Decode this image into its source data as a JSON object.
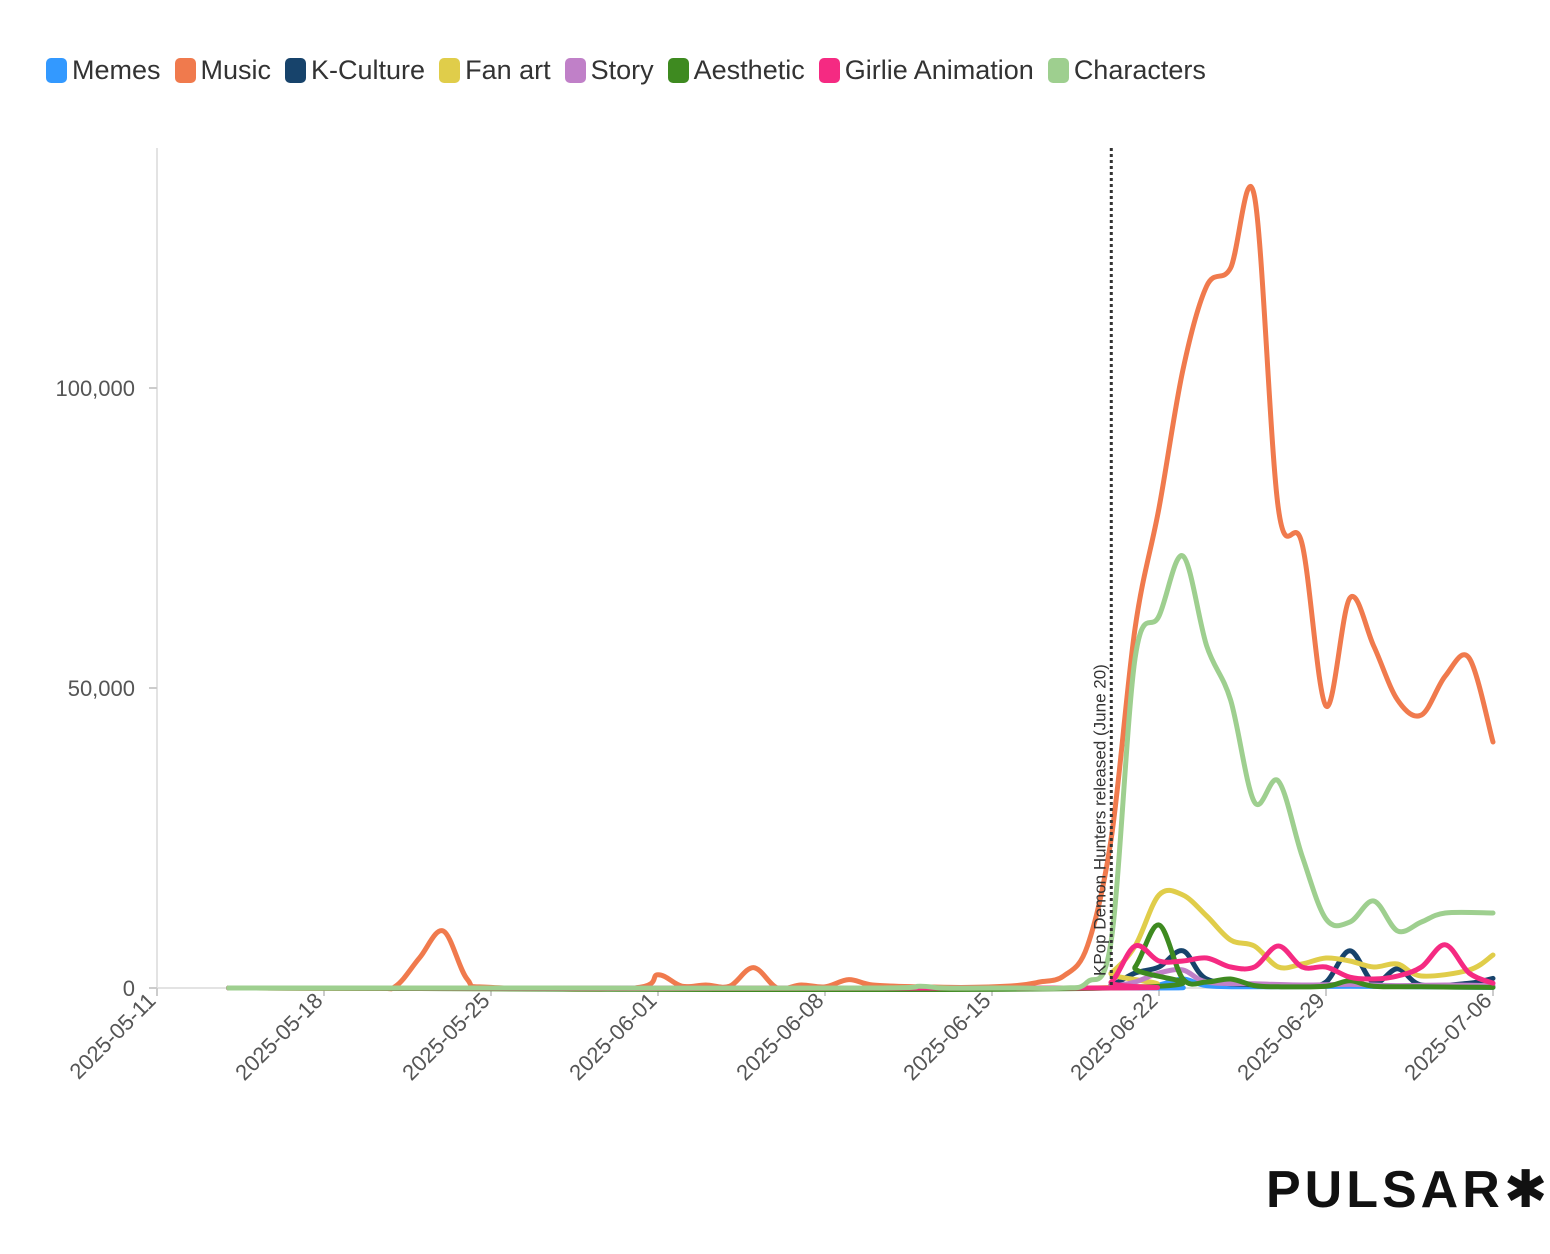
{
  "chart_data": {
    "type": "line",
    "title": "",
    "xlabel": "",
    "ylabel": "",
    "x_ticks": [
      "2025-05-11",
      "2025-05-18",
      "2025-05-25",
      "2025-06-01",
      "2025-06-08",
      "2025-06-15",
      "2025-06-22",
      "2025-06-29",
      "2025-07-06"
    ],
    "y_ticks": [
      0,
      50000,
      100000
    ],
    "y_tick_labels": [
      "0",
      "50,000",
      "100,000"
    ],
    "ylim": [
      0,
      140000
    ],
    "xlim": [
      "2025-05-11",
      "2025-07-06"
    ],
    "grid": "none",
    "legend_position": "top-left",
    "annotation": {
      "date": "2025-06-20",
      "label": "KPop Demon Hunters released (June 20)"
    },
    "series": [
      {
        "name": "Memes",
        "color": "#3399ff",
        "points": [
          [
            "2025-05-14",
            0
          ],
          [
            "2025-06-20",
            0
          ],
          [
            "2025-06-21",
            200
          ],
          [
            "2025-06-22",
            500
          ],
          [
            "2025-06-23",
            1500
          ],
          [
            "2025-06-24",
            400
          ],
          [
            "2025-06-26",
            200
          ],
          [
            "2025-06-30",
            300
          ],
          [
            "2025-07-03",
            200
          ],
          [
            "2025-07-06",
            100
          ]
        ]
      },
      {
        "name": "Music",
        "color": "#f07a4d",
        "points": [
          [
            "2025-05-14",
            0
          ],
          [
            "2025-05-20",
            0
          ],
          [
            "2025-05-21",
            300
          ],
          [
            "2025-05-22",
            5000
          ],
          [
            "2025-05-23",
            9500
          ],
          [
            "2025-05-24",
            1500
          ],
          [
            "2025-05-25",
            100
          ],
          [
            "2025-05-31",
            0
          ],
          [
            "2025-06-01",
            2200
          ],
          [
            "2025-06-02",
            300
          ],
          [
            "2025-06-03",
            500
          ],
          [
            "2025-06-04",
            300
          ],
          [
            "2025-06-05",
            3400
          ],
          [
            "2025-06-06",
            0
          ],
          [
            "2025-06-07",
            500
          ],
          [
            "2025-06-08",
            200
          ],
          [
            "2025-06-09",
            1400
          ],
          [
            "2025-06-10",
            500
          ],
          [
            "2025-06-12",
            200
          ],
          [
            "2025-06-14",
            100
          ],
          [
            "2025-06-16",
            400
          ],
          [
            "2025-06-17",
            1000
          ],
          [
            "2025-06-18",
            2000
          ],
          [
            "2025-06-19",
            7000
          ],
          [
            "2025-06-20",
            25000
          ],
          [
            "2025-06-21",
            60000
          ],
          [
            "2025-06-22",
            80000
          ],
          [
            "2025-06-23",
            103000
          ],
          [
            "2025-06-24",
            117000
          ],
          [
            "2025-06-25",
            120000
          ],
          [
            "2025-06-26",
            132000
          ],
          [
            "2025-06-27",
            80000
          ],
          [
            "2025-06-28",
            74000
          ],
          [
            "2025-06-29",
            47000
          ],
          [
            "2025-06-30",
            65000
          ],
          [
            "2025-07-01",
            57000
          ],
          [
            "2025-07-02",
            48000
          ],
          [
            "2025-07-03",
            45500
          ],
          [
            "2025-07-04",
            52000
          ],
          [
            "2025-07-05",
            55000
          ],
          [
            "2025-07-06",
            41000
          ]
        ]
      },
      {
        "name": "K-Culture",
        "color": "#17436b",
        "points": [
          [
            "2025-05-14",
            0
          ],
          [
            "2025-06-19",
            0
          ],
          [
            "2025-06-20",
            500
          ],
          [
            "2025-06-21",
            2500
          ],
          [
            "2025-06-22",
            3500
          ],
          [
            "2025-06-23",
            6200
          ],
          [
            "2025-06-24",
            1500
          ],
          [
            "2025-06-26",
            500
          ],
          [
            "2025-06-28",
            400
          ],
          [
            "2025-06-29",
            1000
          ],
          [
            "2025-06-30",
            6200
          ],
          [
            "2025-07-01",
            900
          ],
          [
            "2025-07-02",
            3200
          ],
          [
            "2025-07-03",
            500
          ],
          [
            "2025-07-05",
            800
          ],
          [
            "2025-07-06",
            1600
          ]
        ]
      },
      {
        "name": "Fan art",
        "color": "#e0cd4a",
        "points": [
          [
            "2025-05-14",
            0
          ],
          [
            "2025-06-19",
            0
          ],
          [
            "2025-06-20",
            2500
          ],
          [
            "2025-06-21",
            7000
          ],
          [
            "2025-06-22",
            15500
          ],
          [
            "2025-06-23",
            15500
          ],
          [
            "2025-06-24",
            12000
          ],
          [
            "2025-06-25",
            8000
          ],
          [
            "2025-06-26",
            7000
          ],
          [
            "2025-06-27",
            3500
          ],
          [
            "2025-06-28",
            4000
          ],
          [
            "2025-06-29",
            5000
          ],
          [
            "2025-06-30",
            4500
          ],
          [
            "2025-07-01",
            3500
          ],
          [
            "2025-07-02",
            4000
          ],
          [
            "2025-07-03",
            2000
          ],
          [
            "2025-07-05",
            3000
          ],
          [
            "2025-07-06",
            5500
          ]
        ]
      },
      {
        "name": "Story",
        "color": "#c080c8",
        "points": [
          [
            "2025-05-14",
            0
          ],
          [
            "2025-06-19",
            0
          ],
          [
            "2025-06-20",
            300
          ],
          [
            "2025-06-21",
            1000
          ],
          [
            "2025-06-22",
            2500
          ],
          [
            "2025-06-23",
            3000
          ],
          [
            "2025-06-24",
            1000
          ],
          [
            "2025-06-26",
            700
          ],
          [
            "2025-06-28",
            500
          ],
          [
            "2025-06-30",
            600
          ],
          [
            "2025-07-02",
            400
          ],
          [
            "2025-07-04",
            500
          ],
          [
            "2025-07-06",
            400
          ]
        ]
      },
      {
        "name": "Aesthetic",
        "color": "#3e8a20",
        "points": [
          [
            "2025-05-14",
            0
          ],
          [
            "2025-06-20",
            0
          ],
          [
            "2025-06-21",
            3500
          ],
          [
            "2025-06-22",
            10500
          ],
          [
            "2025-06-23",
            1500
          ],
          [
            "2025-06-24",
            1000
          ],
          [
            "2025-06-25",
            1500
          ],
          [
            "2025-06-26",
            400
          ],
          [
            "2025-06-27",
            200
          ],
          [
            "2025-06-29",
            300
          ],
          [
            "2025-06-30",
            1200
          ],
          [
            "2025-07-01",
            300
          ],
          [
            "2025-07-03",
            200
          ],
          [
            "2025-07-06",
            100
          ]
        ]
      },
      {
        "name": "Girlie Animation",
        "color": "#f52a82",
        "points": [
          [
            "2025-05-14",
            0
          ],
          [
            "2025-06-19",
            0
          ],
          [
            "2025-06-20",
            1000
          ],
          [
            "2025-06-21",
            7000
          ],
          [
            "2025-06-22",
            4500
          ],
          [
            "2025-06-23",
            4500
          ],
          [
            "2025-06-24",
            5000
          ],
          [
            "2025-06-25",
            3500
          ],
          [
            "2025-06-26",
            3500
          ],
          [
            "2025-06-27",
            7000
          ],
          [
            "2025-06-28",
            3500
          ],
          [
            "2025-06-29",
            3500
          ],
          [
            "2025-06-30",
            1800
          ],
          [
            "2025-07-01",
            1500
          ],
          [
            "2025-07-02",
            2000
          ],
          [
            "2025-07-03",
            3500
          ],
          [
            "2025-07-04",
            7200
          ],
          [
            "2025-07-05",
            2500
          ],
          [
            "2025-07-06",
            800
          ]
        ]
      },
      {
        "name": "Characters",
        "color": "#9ecf8f",
        "points": [
          [
            "2025-05-14",
            0
          ],
          [
            "2025-05-24",
            0
          ],
          [
            "2025-05-27",
            0
          ],
          [
            "2025-06-10",
            0
          ],
          [
            "2025-06-12",
            300
          ],
          [
            "2025-06-13",
            0
          ],
          [
            "2025-06-16",
            0
          ],
          [
            "2025-06-18",
            0
          ],
          [
            "2025-06-19",
            1000
          ],
          [
            "2025-06-20",
            8000
          ],
          [
            "2025-06-21",
            55000
          ],
          [
            "2025-06-22",
            62000
          ],
          [
            "2025-06-23",
            72000
          ],
          [
            "2025-06-24",
            57000
          ],
          [
            "2025-06-25",
            48000
          ],
          [
            "2025-06-26",
            31000
          ],
          [
            "2025-06-27",
            34500
          ],
          [
            "2025-06-28",
            22000
          ],
          [
            "2025-06-29",
            11500
          ],
          [
            "2025-06-30",
            11000
          ],
          [
            "2025-07-01",
            14500
          ],
          [
            "2025-07-02",
            9500
          ],
          [
            "2025-07-03",
            11000
          ],
          [
            "2025-07-04",
            12500
          ],
          [
            "2025-07-06",
            12500
          ]
        ]
      }
    ]
  },
  "brand": {
    "name": "PULSAR",
    "mark": "✱"
  }
}
